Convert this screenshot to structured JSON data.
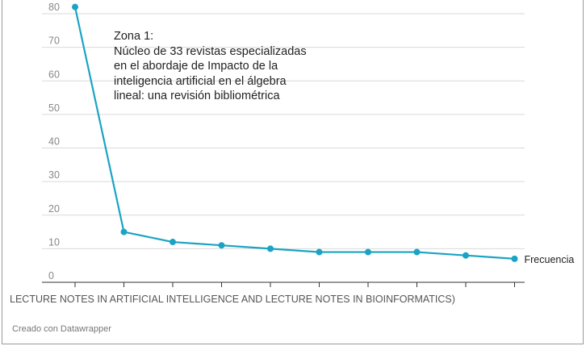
{
  "chart_data": {
    "type": "line",
    "x": [
      1,
      2,
      3,
      4,
      5,
      6,
      7,
      8,
      9,
      10
    ],
    "series": [
      {
        "name": "Frecuencia",
        "values": [
          82,
          15,
          12,
          11,
          10,
          9,
          9,
          9,
          8,
          7
        ]
      }
    ],
    "ylim": [
      0,
      80
    ],
    "y_ticks": [
      "0",
      "10",
      "20",
      "30",
      "40",
      "50",
      "60",
      "70",
      "80"
    ],
    "xlabel": "LECTURE NOTES IN ARTIFICIAL INTELLIGENCE AND LECTURE NOTES IN BIOINFORMATICS)",
    "annotation": "Zona 1:\nNúcleo de 33 revistas especializadas\nen el abordaje de Impacto de la\ninteligencia artificial en el álgebra\nlineal: una revisión bibliométrica",
    "grid": true,
    "line_color": "#1aa3c4",
    "credit": "Creado con Datawrapper"
  }
}
